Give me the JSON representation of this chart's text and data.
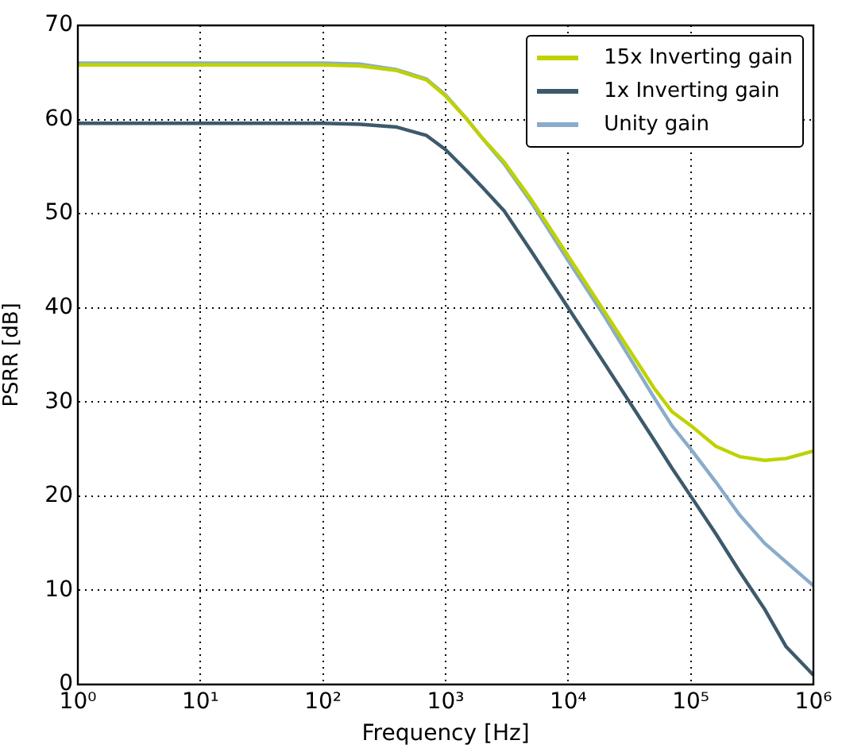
{
  "chart_data": {
    "type": "line",
    "xlabel": "Frequency [Hz]",
    "ylabel": "PSRR [dB]",
    "log": "x",
    "grid": true,
    "legend": "top right",
    "marker": "none",
    "line_style": "solid",
    "xlim": [
      1,
      1000000
    ],
    "ylim": [
      0,
      70
    ],
    "xticks": [
      {
        "value": 1,
        "label": "10⁰"
      },
      {
        "value": 10,
        "label": "10¹"
      },
      {
        "value": 100,
        "label": "10²"
      },
      {
        "value": 1000,
        "label": "10³"
      },
      {
        "value": 10000,
        "label": "10⁴"
      },
      {
        "value": 100000,
        "label": "10⁵"
      },
      {
        "value": 1000000,
        "label": "10⁶"
      }
    ],
    "yticks": [
      0,
      10,
      20,
      30,
      40,
      50,
      60,
      70
    ],
    "x": [
      1,
      10,
      100,
      200,
      400,
      700,
      1000,
      1500,
      2000,
      3000,
      5000,
      10000,
      20000,
      50000,
      70000,
      100000,
      160000,
      250000,
      400000,
      600000,
      1000000
    ],
    "series": [
      {
        "name": "15x Inverting gain",
        "color": "#bfd200",
        "values": [
          65.8,
          65.8,
          65.8,
          65.7,
          65.2,
          64.2,
          62.5,
          60,
          58,
          55.5,
          51.5,
          45.5,
          39.5,
          31.5,
          29,
          27.5,
          25.3,
          24.2,
          23.8,
          24,
          24.8
        ]
      },
      {
        "name": "1x Inverting gain",
        "color": "#3d5a6c",
        "values": [
          59.6,
          59.6,
          59.6,
          59.5,
          59.2,
          58.3,
          56.8,
          54.5,
          52.8,
          50.3,
          46,
          40,
          34,
          26,
          23,
          20,
          16,
          12,
          8,
          4,
          1
        ]
      },
      {
        "name": "Unity gain",
        "color": "#8aaccb",
        "values": [
          66,
          66,
          66,
          65.9,
          65.3,
          64.3,
          62.6,
          60,
          58,
          55.3,
          51.2,
          45,
          39,
          30.5,
          27.5,
          25,
          21.5,
          18,
          15,
          13,
          10.5
        ]
      }
    ]
  }
}
